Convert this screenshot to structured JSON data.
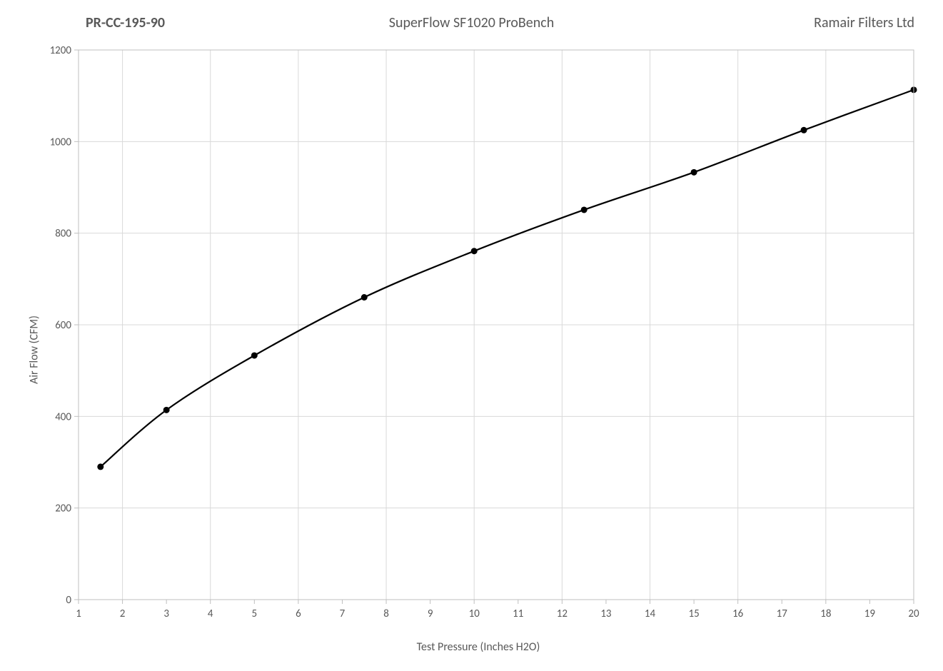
{
  "header": {
    "left": "PR-CC-195-90",
    "center": "SuperFlow SF1020 ProBench",
    "right": "Ramair Filters Ltd"
  },
  "chart": {
    "type": "line",
    "xlabel": "Test Pressure (Inches H2O)",
    "ylabel": "Air Flow (CFM)",
    "xlim": [
      1,
      20
    ],
    "ylim": [
      0,
      1200
    ],
    "xticks": [
      1,
      2,
      3,
      4,
      5,
      6,
      7,
      8,
      9,
      10,
      11,
      12,
      13,
      14,
      15,
      16,
      17,
      18,
      19,
      20
    ],
    "yticks": [
      0,
      200,
      400,
      600,
      800,
      1000,
      1200
    ],
    "x_gridlines": [
      2,
      4,
      6,
      8,
      10,
      12,
      14,
      16,
      18,
      20
    ],
    "series": {
      "x": [
        1.5,
        3,
        5,
        7.5,
        10,
        12.5,
        15,
        17.5,
        20
      ],
      "y": [
        290,
        414,
        533,
        660,
        761,
        851,
        933,
        1025,
        1113
      ]
    },
    "line_color": "#000000",
    "line_width": 2.2,
    "marker_color": "#000000",
    "marker_radius": 4.5,
    "grid_color": "#d9d9d9",
    "axis_color": "#bfbfbf",
    "border_color": "#bfbfbf",
    "background_color": "#ffffff",
    "tick_label_fontsize": 15,
    "axis_label_fontsize": 16,
    "header_fontsize": 20,
    "smooth": true
  }
}
